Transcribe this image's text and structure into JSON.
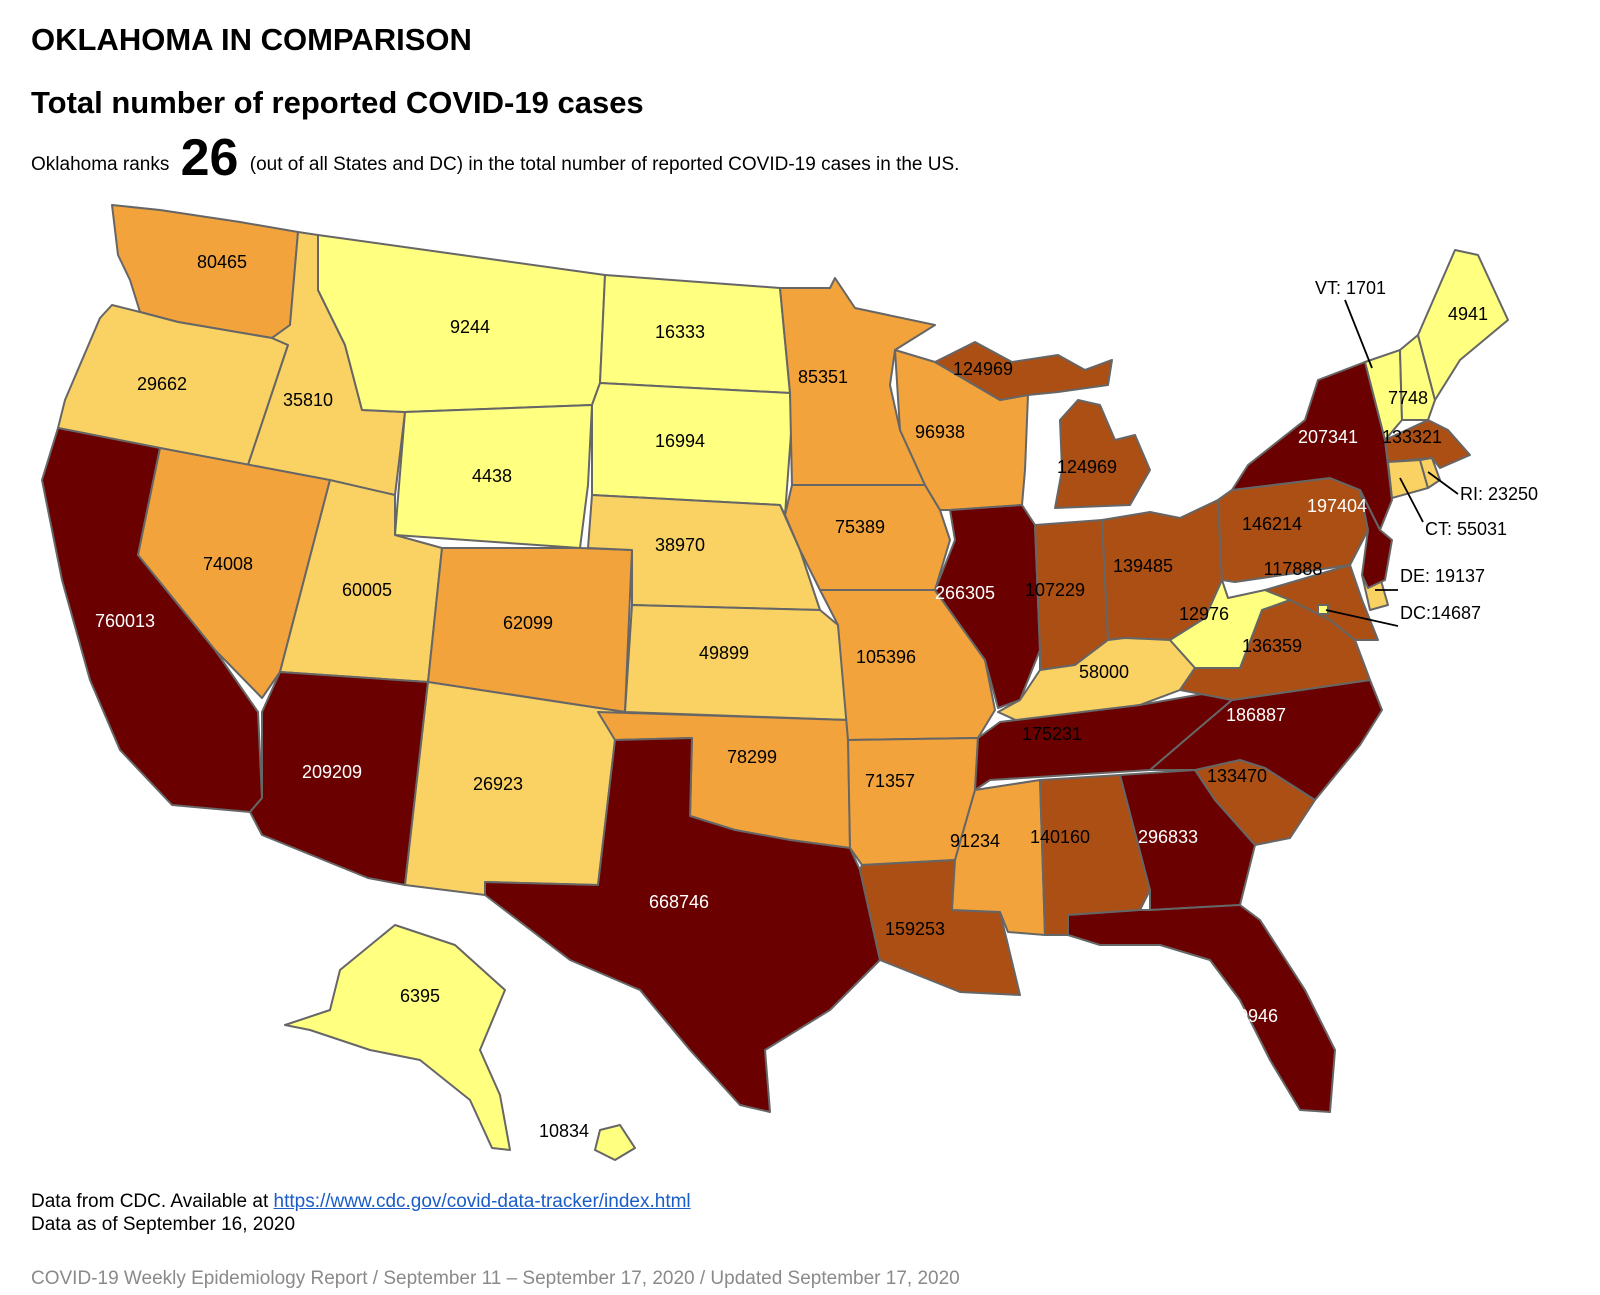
{
  "heading": "OKLAHOMA IN COMPARISON",
  "subheading": "Total number of reported COVID-19 cases",
  "rank": {
    "prefix": "Oklahoma ranks",
    "value": "26",
    "suffix": "(out of all States and DC) in the total number of reported COVID-19 cases in the US."
  },
  "legend_colors": {
    "lowest": "#ffff80",
    "low": "#fad264",
    "mid": "#f2a33c",
    "high": "#ac4f14",
    "highest": "#6b0000"
  },
  "states": [
    {
      "abbr": "WA",
      "cases": "80465",
      "color": "#f2a33c",
      "label_color": "#000000"
    },
    {
      "abbr": "OR",
      "cases": "29662",
      "color": "#fad264",
      "label_color": "#000000"
    },
    {
      "abbr": "CA",
      "cases": "760013",
      "color": "#6b0000",
      "label_color": "#ffffff"
    },
    {
      "abbr": "ID",
      "cases": "35810",
      "color": "#fad264",
      "label_color": "#000000"
    },
    {
      "abbr": "NV",
      "cases": "74008",
      "color": "#f2a33c",
      "label_color": "#000000"
    },
    {
      "abbr": "MT",
      "cases": "9244",
      "color": "#ffff80",
      "label_color": "#000000"
    },
    {
      "abbr": "WY",
      "cases": "4438",
      "color": "#ffff80",
      "label_color": "#000000"
    },
    {
      "abbr": "UT",
      "cases": "60005",
      "color": "#fad264",
      "label_color": "#000000"
    },
    {
      "abbr": "AZ",
      "cases": "209209",
      "color": "#6b0000",
      "label_color": "#ffffff"
    },
    {
      "abbr": "CO",
      "cases": "62099",
      "color": "#f2a33c",
      "label_color": "#000000"
    },
    {
      "abbr": "NM",
      "cases": "26923",
      "color": "#fad264",
      "label_color": "#000000"
    },
    {
      "abbr": "ND",
      "cases": "16333",
      "color": "#ffff80",
      "label_color": "#000000"
    },
    {
      "abbr": "SD",
      "cases": "16994",
      "color": "#ffff80",
      "label_color": "#000000"
    },
    {
      "abbr": "NE",
      "cases": "38970",
      "color": "#fad264",
      "label_color": "#000000"
    },
    {
      "abbr": "KS",
      "cases": "49899",
      "color": "#fad264",
      "label_color": "#000000"
    },
    {
      "abbr": "OK",
      "cases": "78299",
      "color": "#f2a33c",
      "label_color": "#000000"
    },
    {
      "abbr": "TX",
      "cases": "668746",
      "color": "#6b0000",
      "label_color": "#ffffff"
    },
    {
      "abbr": "MN",
      "cases": "85351",
      "color": "#f2a33c",
      "label_color": "#000000"
    },
    {
      "abbr": "IA",
      "cases": "75389",
      "color": "#f2a33c",
      "label_color": "#000000"
    },
    {
      "abbr": "MO",
      "cases": "105396",
      "color": "#f2a33c",
      "label_color": "#000000"
    },
    {
      "abbr": "AR",
      "cases": "71357",
      "color": "#f2a33c",
      "label_color": "#000000"
    },
    {
      "abbr": "LA",
      "cases": "159253",
      "color": "#ac4f14",
      "label_color": "#000000"
    },
    {
      "abbr": "WI",
      "cases": "96938",
      "color": "#f2a33c",
      "label_color": "#000000"
    },
    {
      "abbr": "MI-UP",
      "cases": "124969",
      "color": "#ac4f14",
      "label_color": "#000000"
    },
    {
      "abbr": "MI",
      "cases": "124969",
      "color": "#ac4f14",
      "label_color": "#000000"
    },
    {
      "abbr": "IL",
      "cases": "266305",
      "color": "#6b0000",
      "label_color": "#ffffff"
    },
    {
      "abbr": "IN",
      "cases": "107229",
      "color": "#ac4f14",
      "label_color": "#000000"
    },
    {
      "abbr": "OH",
      "cases": "139485",
      "color": "#ac4f14",
      "label_color": "#000000"
    },
    {
      "abbr": "KY",
      "cases": "58000",
      "color": "#fad264",
      "label_color": "#000000"
    },
    {
      "abbr": "TN",
      "cases": "175231",
      "color": "#6b0000",
      "label_color": "#000000"
    },
    {
      "abbr": "MS",
      "cases": "91234",
      "color": "#f2a33c",
      "label_color": "#000000"
    },
    {
      "abbr": "AL",
      "cases": "140160",
      "color": "#ac4f14",
      "label_color": "#000000"
    },
    {
      "abbr": "GA",
      "cases": "296833",
      "color": "#6b0000",
      "label_color": "#ffffff"
    },
    {
      "abbr": "FL",
      "cases": "660946",
      "color": "#6b0000",
      "label_color": "#ffffff"
    },
    {
      "abbr": "SC",
      "cases": "133470",
      "color": "#ac4f14",
      "label_color": "#000000"
    },
    {
      "abbr": "NC",
      "cases": "186887",
      "color": "#6b0000",
      "label_color": "#ffffff"
    },
    {
      "abbr": "VA",
      "cases": "136359",
      "color": "#ac4f14",
      "label_color": "#000000"
    },
    {
      "abbr": "WV",
      "cases": "12976",
      "color": "#ffff80",
      "label_color": "#000000"
    },
    {
      "abbr": "PA",
      "cases": "146214",
      "color": "#ac4f14",
      "label_color": "#000000"
    },
    {
      "abbr": "MD",
      "cases": "117888",
      "color": "#ac4f14",
      "label_color": "#000000"
    },
    {
      "abbr": "NY",
      "cases": "207341",
      "color": "#6b0000",
      "label_color": "#ffffff"
    },
    {
      "abbr": "NJ",
      "cases": "197404",
      "color": "#6b0000",
      "label_color": "#ffffff"
    },
    {
      "abbr": "MA",
      "cases": "133321",
      "color": "#ac4f14",
      "label_color": "#000000"
    },
    {
      "abbr": "NH",
      "cases": "7748",
      "color": "#ffff80",
      "label_color": "#000000"
    },
    {
      "abbr": "ME",
      "cases": "4941",
      "color": "#ffff80",
      "label_color": "#000000"
    },
    {
      "abbr": "AK",
      "cases": "6395",
      "color": "#ffff80",
      "label_color": "#000000"
    },
    {
      "abbr": "HI",
      "cases": "10834",
      "color": "#ffff80",
      "label_color": "#000000"
    }
  ],
  "callouts": [
    {
      "text": "VT: 1701",
      "color": "#ffff80"
    },
    {
      "text": "RI: 23250",
      "color": "#fad264"
    },
    {
      "text": "CT: 55031",
      "color": "#fad264"
    },
    {
      "text": "DE: 19137",
      "color": "#fad264"
    },
    {
      "text": "DC:14687",
      "color": "#ffff80"
    }
  ],
  "source": {
    "prefix": "Data from CDC. Available at",
    "link_text": "https://www.cdc.gov/covid-data-tracker/index.html",
    "as_of": "Data as of September 16, 2020"
  },
  "footer": "COVID-19 Weekly Epidemiology Report / September 11 – September 17, 2020 / Updated September 17, 2020"
}
